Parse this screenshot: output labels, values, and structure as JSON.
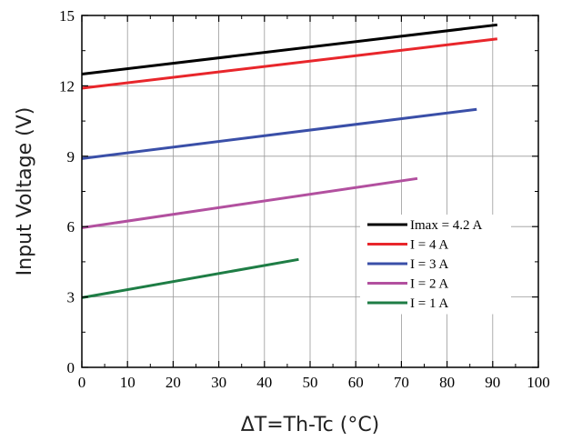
{
  "chart_data": {
    "type": "line",
    "title": "",
    "xlabel": "ΔT=Th-Tc (°C)",
    "ylabel": "Input Voltage (V)",
    "xlim": [
      0,
      100
    ],
    "ylim": [
      0,
      15
    ],
    "xticks": [
      0,
      10,
      20,
      30,
      40,
      50,
      60,
      70,
      80,
      90,
      100
    ],
    "yticks": [
      0,
      3,
      6,
      9,
      12,
      15
    ],
    "grid": true,
    "legend_position": "lower-right",
    "series": [
      {
        "name": "Imax = 4.2 A",
        "color": "#000000",
        "x": [
          0,
          91
        ],
        "y": [
          12.5,
          14.6
        ]
      },
      {
        "name": "I = 4 A",
        "color": "#e8262b",
        "x": [
          0,
          91
        ],
        "y": [
          11.9,
          14.0
        ]
      },
      {
        "name": "I = 3 A",
        "color": "#3a4fa8",
        "x": [
          0,
          86.5
        ],
        "y": [
          8.9,
          11.0
        ]
      },
      {
        "name": "I = 2 A",
        "color": "#b2509f",
        "x": [
          0,
          73.5
        ],
        "y": [
          5.95,
          8.05
        ]
      },
      {
        "name": "I = 1 A",
        "color": "#1e7d45",
        "x": [
          0,
          47.5
        ],
        "y": [
          2.97,
          4.6
        ]
      }
    ]
  }
}
